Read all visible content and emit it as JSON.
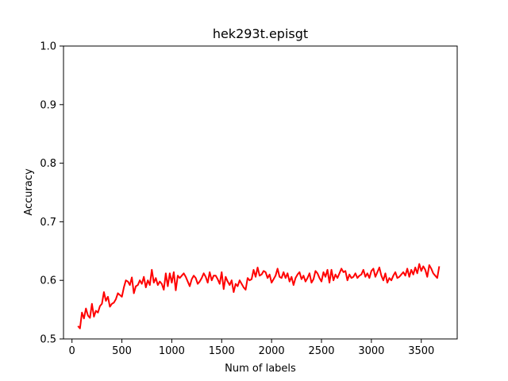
{
  "chart_data": {
    "type": "line",
    "title": "hek293t.episgt",
    "xlabel": "Num of labels",
    "ylabel": "Accuracy",
    "xlim": [
      -85,
      3860
    ],
    "ylim": [
      0.5,
      1.0
    ],
    "xticks": [
      0,
      500,
      1000,
      1500,
      2000,
      2500,
      3000,
      3500
    ],
    "xtick_labels": [
      "0",
      "500",
      "1000",
      "1500",
      "2000",
      "2500",
      "3000",
      "3500"
    ],
    "yticks": [
      0.5,
      0.6,
      0.7,
      0.8,
      0.9,
      1.0
    ],
    "ytick_labels": [
      "0.5",
      "0.6",
      "0.7",
      "0.8",
      "0.9",
      "1.0"
    ],
    "grid": false,
    "series": [
      {
        "color": "#ff0000",
        "x": [
          60,
          80,
          100,
          120,
          140,
          160,
          180,
          200,
          220,
          240,
          260,
          280,
          300,
          320,
          340,
          360,
          380,
          400,
          420,
          440,
          460,
          480,
          500,
          520,
          540,
          560,
          580,
          600,
          620,
          640,
          660,
          680,
          700,
          720,
          740,
          760,
          780,
          800,
          820,
          840,
          860,
          880,
          900,
          920,
          940,
          960,
          980,
          1000,
          1020,
          1040,
          1060,
          1080,
          1100,
          1120,
          1140,
          1160,
          1180,
          1200,
          1220,
          1240,
          1260,
          1280,
          1300,
          1320,
          1340,
          1360,
          1380,
          1400,
          1420,
          1440,
          1460,
          1480,
          1500,
          1520,
          1540,
          1560,
          1580,
          1600,
          1620,
          1640,
          1660,
          1680,
          1700,
          1720,
          1740,
          1760,
          1780,
          1800,
          1820,
          1840,
          1860,
          1880,
          1900,
          1920,
          1940,
          1960,
          1980,
          2000,
          2020,
          2040,
          2060,
          2080,
          2100,
          2120,
          2140,
          2160,
          2180,
          2200,
          2220,
          2240,
          2260,
          2280,
          2300,
          2320,
          2340,
          2360,
          2380,
          2400,
          2420,
          2440,
          2460,
          2480,
          2500,
          2520,
          2540,
          2560,
          2580,
          2600,
          2620,
          2640,
          2660,
          2680,
          2700,
          2720,
          2740,
          2760,
          2780,
          2800,
          2820,
          2840,
          2860,
          2880,
          2900,
          2920,
          2940,
          2960,
          2980,
          3000,
          3020,
          3040,
          3060,
          3080,
          3100,
          3120,
          3140,
          3160,
          3180,
          3200,
          3220,
          3240,
          3260,
          3280,
          3300,
          3320,
          3340,
          3360,
          3380,
          3400,
          3420,
          3440,
          3460,
          3480,
          3500,
          3520,
          3540,
          3560,
          3580,
          3600,
          3620,
          3640,
          3660,
          3680
        ],
        "y": [
          0.522,
          0.518,
          0.545,
          0.535,
          0.552,
          0.54,
          0.536,
          0.56,
          0.538,
          0.548,
          0.545,
          0.556,
          0.56,
          0.58,
          0.565,
          0.572,
          0.555,
          0.56,
          0.562,
          0.568,
          0.578,
          0.575,
          0.572,
          0.588,
          0.6,
          0.598,
          0.592,
          0.605,
          0.578,
          0.59,
          0.592,
          0.6,
          0.594,
          0.606,
          0.588,
          0.6,
          0.592,
          0.618,
          0.596,
          0.604,
          0.592,
          0.598,
          0.594,
          0.584,
          0.612,
          0.59,
          0.612,
          0.596,
          0.614,
          0.583,
          0.608,
          0.604,
          0.608,
          0.612,
          0.606,
          0.598,
          0.59,
          0.602,
          0.608,
          0.604,
          0.594,
          0.598,
          0.604,
          0.612,
          0.606,
          0.596,
          0.614,
          0.6,
          0.608,
          0.608,
          0.602,
          0.594,
          0.614,
          0.585,
          0.606,
          0.598,
          0.592,
          0.6,
          0.58,
          0.594,
          0.59,
          0.6,
          0.594,
          0.588,
          0.584,
          0.604,
          0.6,
          0.602,
          0.618,
          0.606,
          0.622,
          0.608,
          0.61,
          0.616,
          0.614,
          0.604,
          0.61,
          0.596,
          0.602,
          0.608,
          0.62,
          0.606,
          0.604,
          0.614,
          0.604,
          0.612,
          0.598,
          0.606,
          0.592,
          0.604,
          0.61,
          0.614,
          0.602,
          0.608,
          0.598,
          0.604,
          0.612,
          0.596,
          0.602,
          0.616,
          0.612,
          0.604,
          0.598,
          0.614,
          0.606,
          0.618,
          0.596,
          0.618,
          0.6,
          0.61,
          0.604,
          0.612,
          0.62,
          0.614,
          0.616,
          0.6,
          0.61,
          0.604,
          0.606,
          0.612,
          0.604,
          0.608,
          0.61,
          0.618,
          0.606,
          0.612,
          0.604,
          0.616,
          0.62,
          0.606,
          0.614,
          0.622,
          0.608,
          0.6,
          0.612,
          0.596,
          0.604,
          0.6,
          0.608,
          0.614,
          0.604,
          0.606,
          0.61,
          0.614,
          0.608,
          0.62,
          0.606,
          0.618,
          0.61,
          0.622,
          0.612,
          0.628,
          0.616,
          0.624,
          0.618,
          0.606,
          0.626,
          0.62,
          0.612,
          0.608,
          0.604,
          0.624
        ]
      }
    ]
  }
}
